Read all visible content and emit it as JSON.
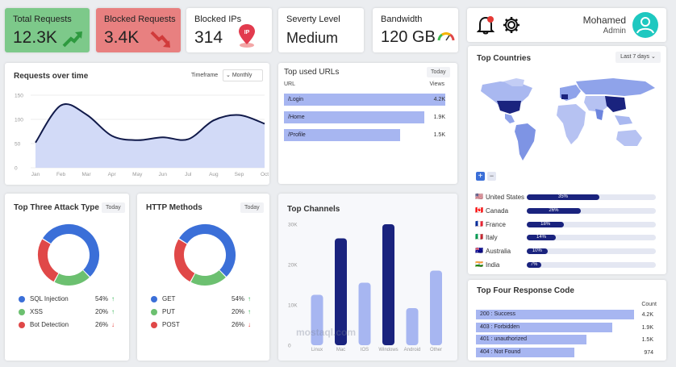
{
  "kpis": {
    "total_requests": {
      "title": "Total Requests",
      "value": "12.3K"
    },
    "blocked_requests": {
      "title": "Blocked Requests",
      "value": "3.4K"
    },
    "blocked_ips": {
      "title": "Blocked IPs",
      "value": "314"
    },
    "severity": {
      "title": "Severty Level",
      "value": "Medium"
    },
    "bandwidth": {
      "title": "Bandwidth",
      "value": "120 GB"
    }
  },
  "user": {
    "name": "Mohamed",
    "role": "Admin"
  },
  "colors": {
    "green_card": "#7dc98a",
    "red_card": "#e88080",
    "navy": "#1a237e",
    "light_blue": "#a7b6f1",
    "blue": "#3b6fd8",
    "red": "#e04848",
    "green": "#6cc070"
  },
  "requests_chart": {
    "title": "Requests over time",
    "timeframe_label": "Timeframe",
    "timeframe_value": "Monthly",
    "chart_data": {
      "type": "area",
      "categories": [
        "Jan",
        "Feb",
        "Mar",
        "Apr",
        "May",
        "Jun",
        "Jul",
        "Aug",
        "Sep",
        "Oct"
      ],
      "values": [
        52,
        129,
        110,
        66,
        57,
        63,
        59,
        98,
        109,
        91
      ],
      "yticks": [
        "150",
        "100",
        "50",
        "0"
      ],
      "ylim": [
        0,
        150
      ]
    }
  },
  "urls": {
    "title": "Top used URLs",
    "tag": "Today",
    "col_url": "URL",
    "col_views": "Views",
    "chart_data": {
      "type": "bar",
      "categories": [
        "/Login",
        "/Home",
        "/Profile"
      ],
      "values": [
        "4.2K",
        "1.9K",
        "1.5K"
      ],
      "fill": [
        1.0,
        0.87,
        0.72
      ]
    }
  },
  "attack": {
    "title": "Top Three Attack Type",
    "tag": "Today",
    "items": [
      {
        "name": "SQL Injection",
        "pct": "54%",
        "trend": "↑",
        "color": "#3b6fd8"
      },
      {
        "name": "XSS",
        "pct": "20%",
        "trend": "↑",
        "color": "#6cc070"
      },
      {
        "name": "Bot Detection",
        "pct": "26%",
        "trend": "↓",
        "color": "#e04848"
      }
    ],
    "chart_data": {
      "type": "pie",
      "categories": [
        "SQL Injection",
        "XSS",
        "Bot Detection"
      ],
      "values": [
        54,
        20,
        26
      ]
    }
  },
  "http": {
    "title": "HTTP  Methods",
    "tag": "Today",
    "items": [
      {
        "name": "GET",
        "pct": "54%",
        "trend": "↑",
        "color": "#3b6fd8"
      },
      {
        "name": "PUT",
        "pct": "20%",
        "trend": "↑",
        "color": "#6cc070"
      },
      {
        "name": "POST",
        "pct": "26%",
        "trend": "↓",
        "color": "#e04848"
      }
    ],
    "chart_data": {
      "type": "pie",
      "categories": [
        "GET",
        "PUT",
        "POST"
      ],
      "values": [
        54,
        20,
        26
      ]
    }
  },
  "channels": {
    "title": "Top Channels",
    "watermark": "mostaql.com",
    "chart_data": {
      "type": "bar",
      "categories": [
        "Linux",
        "Mac",
        "IOS",
        "Windows",
        "Android",
        "Other"
      ],
      "values": [
        12500,
        26500,
        15500,
        30000,
        9200,
        18500
      ],
      "yticks": [
        "30K",
        "20K",
        "10K",
        "0"
      ],
      "ylim": [
        0,
        30000
      ]
    }
  },
  "countries": {
    "title": "Top Countries",
    "range": "Last 7 days",
    "zoom_in": "+",
    "zoom_out": "−",
    "items": [
      {
        "name": "United States",
        "flag": "🇺🇸",
        "pct": "35%",
        "fill": 0.35
      },
      {
        "name": "Canada",
        "flag": "🇨🇦",
        "pct": "26%",
        "fill": 0.26
      },
      {
        "name": "France",
        "flag": "🇫🇷",
        "pct": "18%",
        "fill": 0.18
      },
      {
        "name": "Italy",
        "flag": "🇮🇹",
        "pct": "14%",
        "fill": 0.14
      },
      {
        "name": "Australia",
        "flag": "🇦🇺",
        "pct": "10%",
        "fill": 0.1
      },
      {
        "name": "India",
        "flag": "🇮🇳",
        "pct": "7%",
        "fill": 0.07
      }
    ]
  },
  "response": {
    "title": "Top Four Response Code",
    "col_count": "Count",
    "chart_data": {
      "type": "bar",
      "categories": [
        "200 : Success",
        "403 : Forbidden",
        "401 : unauthorized",
        "404 : Not Found"
      ],
      "values": [
        "4.2K",
        "1.9K",
        "1.5K",
        "974"
      ],
      "fill": [
        1.0,
        0.86,
        0.7,
        0.62
      ]
    }
  }
}
